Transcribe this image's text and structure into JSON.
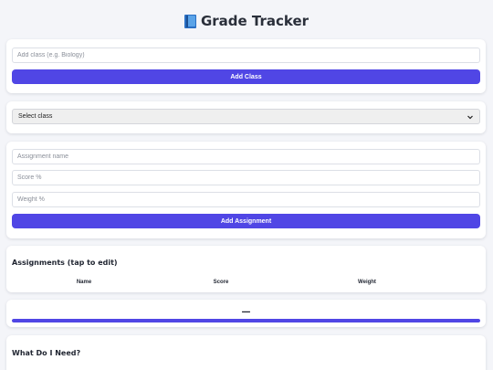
{
  "header": {
    "title": "Grade Tracker",
    "icon": "book-icon"
  },
  "add_class": {
    "placeholder": "Add class (e.g. Biology)",
    "button_label": "Add Class"
  },
  "class_select": {
    "selected": "Select class"
  },
  "assignment_form": {
    "name_placeholder": "Assignment name",
    "score_placeholder": "Score %",
    "weight_placeholder": "Weight %",
    "button_label": "Add Assignment"
  },
  "assignments": {
    "title": "Assignments (tap to edit)",
    "columns": [
      "Name",
      "Score",
      "Weight"
    ]
  },
  "summary": {
    "total_text": "—",
    "progress_fraction": 1.0
  },
  "what_do_i_need": {
    "title": "What Do I Need?"
  },
  "colors": {
    "accent": "#5046e5",
    "background": "#f4f5f9"
  }
}
